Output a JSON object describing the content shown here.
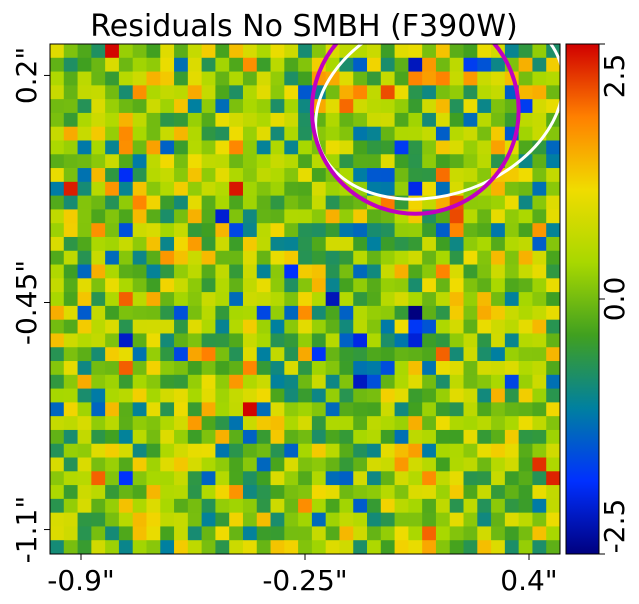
{
  "chart_data": {
    "type": "heatmap",
    "title": "Residuals No SMBH (F390W)",
    "xlabel": "",
    "ylabel": "",
    "x_ticks": [
      "-0.9\"",
      "-0.25\"",
      "0.4\""
    ],
    "y_ticks": [
      "0.2\"",
      "-0.45\"",
      "-1.1\""
    ],
    "x_tick_values": [
      -0.9,
      -0.25,
      0.4
    ],
    "y_tick_values": [
      0.2,
      -0.45,
      -1.1
    ],
    "xlim": [
      -0.99,
      0.49
    ],
    "ylim": [
      -1.17,
      0.29
    ],
    "grid_size": 37,
    "colorbar": {
      "ticks": [
        "2.5",
        "0.0",
        "-2.5"
      ],
      "tick_values": [
        2.5,
        0.0,
        -2.5
      ],
      "range": [
        -2.5,
        2.5
      ],
      "colormap": "jet-like (dark blue → blue → teal → green → yellow → orange → red)",
      "stops": [
        "#00007f",
        "#0030ff",
        "#0080a0",
        "#40a020",
        "#a8d800",
        "#f0dc00",
        "#ff8000",
        "#d00000"
      ]
    },
    "overlays": [
      {
        "shape": "ellipse",
        "color": "#ffffff",
        "center": [
          0.14,
          0.12
        ],
        "semi_axes": [
          0.37,
          0.26
        ],
        "angle_deg": -20
      },
      {
        "shape": "circle",
        "color": "#c000c0",
        "center": [
          0.07,
          0.1
        ],
        "radius": 0.3
      }
    ],
    "notes": "Pixel residual values range roughly -2.5 to 2.5; individual pixel values are noise and not legible, generated deterministically to mimic appearance."
  }
}
